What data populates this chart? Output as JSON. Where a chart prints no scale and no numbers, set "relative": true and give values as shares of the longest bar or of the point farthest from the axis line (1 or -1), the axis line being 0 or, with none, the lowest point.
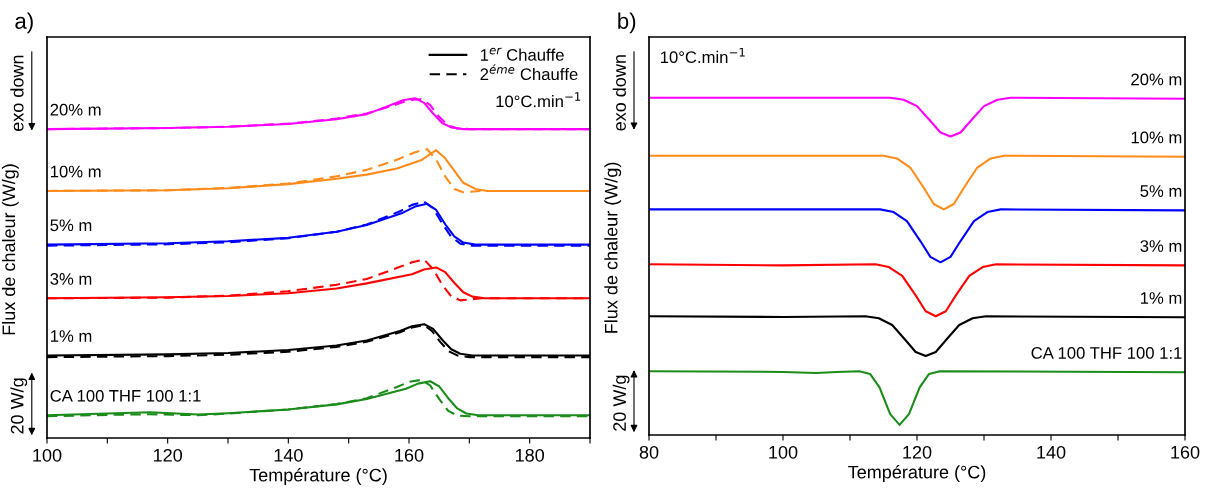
{
  "chart_data": [
    {
      "type": "line",
      "title": "a)",
      "xlabel": "Température (°C)",
      "ylabel": "Flux de chaleur (W/g)",
      "relative": true,
      "xlim": [
        100,
        190
      ],
      "xticks": [
        100,
        {
          "value": 110,
          "label": null
        },
        120,
        {
          "value": 130,
          "label": null
        },
        140,
        {
          "value": 150,
          "label": null
        },
        160,
        {
          "value": 170,
          "label": null
        },
        180,
        {
          "value": 190,
          "label": null
        }
      ],
      "annotations": [
        "1$^{er}$ Chauffe",
        "2$^{éme}$ Chauffe",
        "10°C.min$^{−1}$",
        "exo down",
        "20 W/g"
      ],
      "series": [
        {
          "name": "20% m",
          "color": "#ff00ff",
          "line_style": "solid",
          "x": [
            100,
            120,
            130,
            140,
            148,
            153,
            157,
            159,
            161,
            162.5,
            164,
            165.5,
            167,
            169,
            190
          ],
          "values": [
            0.909,
            0.912,
            0.916,
            0.924,
            0.938,
            0.953,
            0.98,
            0.994,
            1.0,
            0.986,
            0.955,
            0.927,
            0.914,
            0.909,
            0.909
          ]
        },
        {
          "color": "#ff00ff",
          "line_style": "dashed",
          "x": [
            100,
            120,
            130,
            140,
            148,
            153,
            158,
            160,
            162,
            163.5,
            165,
            166.5,
            168,
            170,
            190
          ],
          "values": [
            0.909,
            0.912,
            0.916,
            0.925,
            0.94,
            0.955,
            0.982,
            0.994,
            0.997,
            0.98,
            0.945,
            0.92,
            0.911,
            0.909,
            0.909
          ]
        },
        {
          "name": "10% m",
          "color": "#ff8c1a",
          "line_style": "solid",
          "x": [
            100,
            120,
            130,
            140,
            148,
            153,
            158,
            162,
            164.5,
            166,
            167.5,
            169,
            171,
            173,
            190
          ],
          "values": [
            0.727,
            0.729,
            0.735,
            0.747,
            0.763,
            0.775,
            0.793,
            0.817,
            0.847,
            0.823,
            0.787,
            0.751,
            0.733,
            0.727,
            0.727
          ]
        },
        {
          "color": "#ff8c1a",
          "line_style": "dashed",
          "x": [
            100,
            120,
            130,
            140,
            148,
            153,
            158,
            161,
            163,
            164.5,
            166,
            167.5,
            169,
            172,
            190
          ],
          "values": [
            0.727,
            0.729,
            0.736,
            0.749,
            0.77,
            0.789,
            0.819,
            0.841,
            0.85,
            0.819,
            0.77,
            0.733,
            0.723,
            0.727,
            0.727
          ]
        },
        {
          "name": "5% m",
          "color": "#0000ff",
          "line_style": "solid",
          "x": [
            100,
            120,
            130,
            140,
            148,
            153,
            159,
            161,
            163,
            164.5,
            166,
            167.5,
            169,
            171,
            190
          ],
          "values": [
            0.569,
            0.573,
            0.579,
            0.589,
            0.607,
            0.627,
            0.663,
            0.681,
            0.689,
            0.671,
            0.629,
            0.593,
            0.575,
            0.569,
            0.569
          ]
        },
        {
          "color": "#0000ff",
          "line_style": "dashed",
          "x": [
            100,
            120,
            130,
            140,
            148,
            153,
            158.5,
            160.5,
            162.5,
            164,
            165.5,
            167,
            168.5,
            170.5,
            190
          ],
          "values": [
            0.566,
            0.57,
            0.576,
            0.588,
            0.607,
            0.628,
            0.667,
            0.686,
            0.695,
            0.676,
            0.631,
            0.592,
            0.572,
            0.566,
            0.566
          ]
        },
        {
          "name": "3% m",
          "color": "#ff0000",
          "line_style": "solid",
          "x": [
            100,
            120,
            130,
            140,
            148,
            153,
            160.5,
            162.5,
            164.5,
            166,
            167.5,
            169,
            170.5,
            172.5,
            190
          ],
          "values": [
            0.411,
            0.414,
            0.418,
            0.426,
            0.44,
            0.455,
            0.482,
            0.496,
            0.502,
            0.488,
            0.457,
            0.429,
            0.416,
            0.411,
            0.411
          ]
        },
        {
          "color": "#ff0000",
          "line_style": "dashed",
          "x": [
            100,
            120,
            130,
            140,
            148,
            153,
            157.5,
            160.5,
            162.5,
            164,
            165.5,
            167,
            168.5,
            172,
            190
          ],
          "values": [
            0.411,
            0.413,
            0.419,
            0.432,
            0.451,
            0.468,
            0.497,
            0.517,
            0.525,
            0.497,
            0.451,
            0.417,
            0.405,
            0.411,
            0.411
          ]
        },
        {
          "name": "1% m",
          "color": "#000000",
          "line_style": "solid",
          "x": [
            100,
            120,
            130,
            140,
            148,
            153,
            158.5,
            160.5,
            162.5,
            164,
            165.5,
            167,
            168.5,
            170.5,
            190
          ],
          "values": [
            0.243,
            0.246,
            0.25,
            0.259,
            0.272,
            0.287,
            0.315,
            0.329,
            0.335,
            0.321,
            0.289,
            0.261,
            0.248,
            0.243,
            0.243
          ]
        },
        {
          "color": "#000000",
          "line_style": "dashed",
          "x": [
            100,
            120,
            130,
            140,
            148,
            153,
            158.5,
            160.5,
            162.5,
            163.8,
            165.2,
            166.6,
            168,
            170,
            190
          ],
          "values": [
            0.238,
            0.241,
            0.245,
            0.254,
            0.268,
            0.283,
            0.311,
            0.325,
            0.332,
            0.315,
            0.282,
            0.255,
            0.243,
            0.238,
            0.238
          ]
        },
        {
          "name": "CA 100 THF 100 1:1",
          "color": "#1a8c1a",
          "line_style": "solid",
          "x": [
            100,
            110,
            117,
            125,
            130,
            140,
            148,
            153,
            159.5,
            161.5,
            163.5,
            165,
            166.5,
            168,
            169.5,
            171.5,
            190
          ],
          "values": [
            0.067,
            0.072,
            0.076,
            0.069,
            0.073,
            0.084,
            0.099,
            0.115,
            0.145,
            0.16,
            0.167,
            0.152,
            0.117,
            0.087,
            0.072,
            0.067,
            0.067
          ]
        },
        {
          "color": "#1a8c1a",
          "line_style": "dashed",
          "x": [
            100,
            110,
            117,
            125,
            130,
            140,
            148,
            153,
            158,
            160,
            162,
            163.5,
            165,
            166.5,
            168,
            170,
            190
          ],
          "values": [
            0.064,
            0.068,
            0.07,
            0.067,
            0.072,
            0.084,
            0.1,
            0.117,
            0.15,
            0.165,
            0.171,
            0.155,
            0.115,
            0.08,
            0.066,
            0.064,
            0.064
          ]
        }
      ]
    },
    {
      "type": "line",
      "title": "b)",
      "xlabel": "Température (°C)",
      "ylabel": "Flux de chaleur (W/g)",
      "relative": true,
      "xlim": [
        80,
        160
      ],
      "xticks": [
        80,
        {
          "value": 90,
          "label": null
        },
        100,
        {
          "value": 110,
          "label": null
        },
        120,
        {
          "value": 130,
          "label": null
        },
        140,
        {
          "value": 150,
          "label": null
        },
        160
      ],
      "annotations": [
        "10°C.min$^{−1}$",
        "exo down",
        "20 W/g"
      ],
      "series": [
        {
          "name": "20% m",
          "color": "#ff00ff",
          "x": [
            80,
            100,
            116,
            118,
            120,
            122,
            123.5,
            125,
            126.5,
            128,
            130,
            132,
            134,
            160
          ],
          "values": [
            1.0,
            1.0,
            1.0,
            0.994,
            0.975,
            0.931,
            0.897,
            0.885,
            0.897,
            0.931,
            0.975,
            0.994,
            1.0,
            0.997
          ]
        },
        {
          "name": "10% m",
          "color": "#ff8c1a",
          "x": [
            80,
            100,
            115,
            117,
            119,
            121,
            122.5,
            124,
            125.5,
            127,
            129,
            131,
            133,
            160
          ],
          "values": [
            0.828,
            0.828,
            0.828,
            0.82,
            0.793,
            0.733,
            0.685,
            0.669,
            0.685,
            0.733,
            0.793,
            0.82,
            0.828,
            0.825
          ]
        },
        {
          "name": "5% m",
          "color": "#0000ff",
          "x": [
            80,
            100,
            114.5,
            116.5,
            118.5,
            120.5,
            122,
            123.5,
            125,
            126.5,
            128.5,
            130.5,
            132.5,
            160
          ],
          "values": [
            0.669,
            0.669,
            0.669,
            0.661,
            0.634,
            0.575,
            0.528,
            0.512,
            0.528,
            0.575,
            0.634,
            0.661,
            0.669,
            0.666
          ]
        },
        {
          "name": "3% m",
          "color": "#ff0000",
          "x": [
            80,
            100,
            113.8,
            115.8,
            117.8,
            119.8,
            121.3,
            122.8,
            124.3,
            125.8,
            127.8,
            129.8,
            131.8,
            160
          ],
          "values": [
            0.506,
            0.503,
            0.506,
            0.498,
            0.472,
            0.414,
            0.367,
            0.352,
            0.367,
            0.414,
            0.472,
            0.498,
            0.506,
            0.503
          ]
        },
        {
          "name": "1% m",
          "color": "#000000",
          "x": [
            80,
            100,
            112.3,
            114.3,
            116.3,
            118.3,
            119.8,
            121.3,
            122.8,
            124.3,
            126.3,
            128.3,
            130.3,
            160
          ],
          "values": [
            0.352,
            0.35,
            0.352,
            0.346,
            0.326,
            0.281,
            0.246,
            0.234,
            0.246,
            0.281,
            0.326,
            0.346,
            0.352,
            0.349
          ]
        },
        {
          "name": "CA 100 THF 100 1:1",
          "color": "#1a8c1a",
          "x": [
            80,
            100,
            105,
            108,
            111.4,
            113,
            114.4,
            116,
            117.4,
            118.8,
            120.4,
            121.8,
            123.4,
            160
          ],
          "values": [
            0.189,
            0.187,
            0.184,
            0.187,
            0.189,
            0.181,
            0.141,
            0.062,
            0.03,
            0.062,
            0.141,
            0.181,
            0.189,
            0.186
          ]
        }
      ]
    }
  ]
}
